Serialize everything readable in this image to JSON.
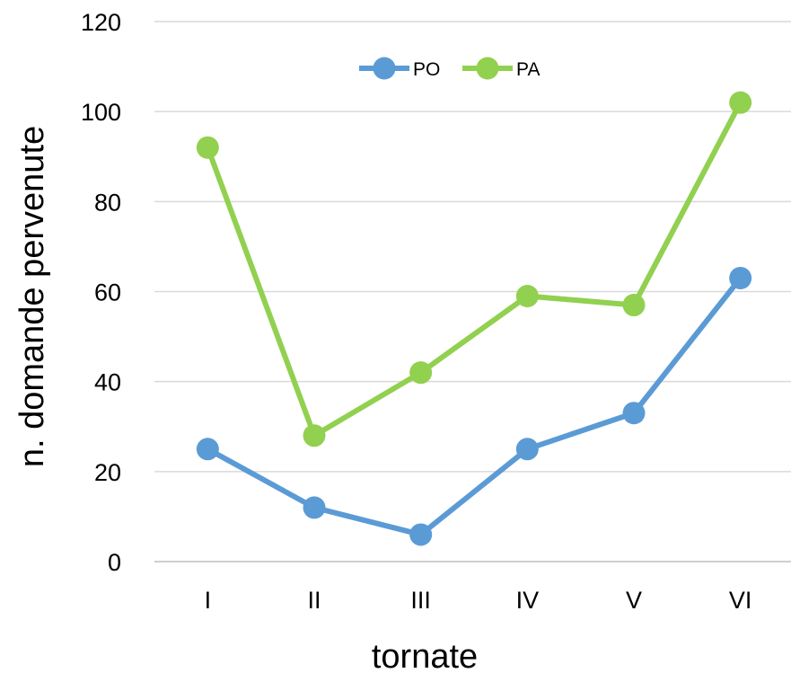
{
  "chart_data": {
    "type": "line",
    "title": "",
    "xlabel": "tornate",
    "ylabel": "n. domande pervenute",
    "categories": [
      "I",
      "II",
      "III",
      "IV",
      "V",
      "VI"
    ],
    "ylim": [
      0,
      120
    ],
    "yticks": [
      0,
      20,
      40,
      60,
      80,
      100,
      120
    ],
    "grid": true,
    "legend_position": "top-center",
    "series": [
      {
        "name": "PO",
        "color": "#5B9BD5",
        "values": [
          25,
          12,
          6,
          25,
          33,
          63
        ]
      },
      {
        "name": "PA",
        "color": "#92D050",
        "values": [
          92,
          28,
          42,
          59,
          57,
          102
        ]
      }
    ]
  }
}
